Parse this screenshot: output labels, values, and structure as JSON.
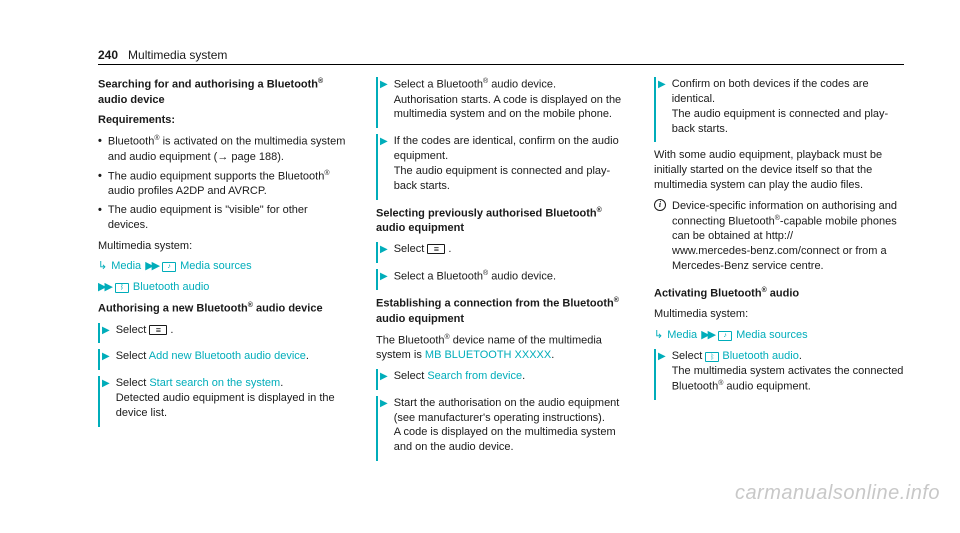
{
  "header": {
    "page": "240",
    "section": "Multimedia system"
  },
  "colors": {
    "teal": "#00adba",
    "text": "#1a1a1a",
    "watermark": "#c8c8c8"
  },
  "col1": {
    "h1a": "Searching for and authorising a Bluetooth",
    "h1b": "audio device",
    "reqLabel": "Requirements:",
    "req1a": "Bluetooth",
    "req1b": " is activated on the multimedia system and audio equipment (",
    "req1c": " page 188).",
    "req2a": "The audio equipment supports the Blue­tooth",
    "req2b": " audio profiles A2DP and AVRCP.",
    "req3": "The audio equipment is \"visible\" for other devices.",
    "multiLabel": "Multimedia system:",
    "navMedia": "Media",
    "navSources": "Media sources",
    "navBT": "Bluetooth audio",
    "h2a": "Authorising a new Bluetooth",
    "h2b": " audio device",
    "s1": "Select ",
    "s2a": "Select ",
    "s2link": "Add new Bluetooth audio device",
    "s3a": "Select ",
    "s3link": "Start search on the system",
    "s3b": "Detected audio equipment is displayed in the device list."
  },
  "col2": {
    "s1a": "Select a Bluetooth",
    "s1b": " audio device.",
    "s1c": "Authorisation starts. A code is displayed on the multimedia system and on the mobile phone.",
    "s2a": "If the codes are identical, confirm on the audio equipment.",
    "s2b": "The audio equipment is connected and play­back starts.",
    "h1a": "Selecting previously authorised Bluetooth",
    "h1b": "audio equipment",
    "s3": "Select ",
    "s4a": "Select a Bluetooth",
    "s4b": " audio device.",
    "h2a": "Establishing a connection from the Blue­tooth",
    "h2b": " audio equipment",
    "p1a": "The Bluetooth",
    "p1b": " device name of the multimedia system is ",
    "p1link": "MB BLUETOOTH XXXXX",
    "s5a": "Select ",
    "s5link": "Search from device",
    "s6a": "Start the authorisation on the audio equip­ment (see manufacturer's operating instruc­tions).",
    "s6b": "A code is displayed on the multimedia sys­tem and on the audio device."
  },
  "col3": {
    "s1a": "Confirm on both devices if the codes are identical.",
    "s1b": "The audio equipment is connected and play­back starts.",
    "p1": "With some audio equipment, playback must be initially started on the device itself so that the multimedia system can play the audio files.",
    "info": "Device-specific information on authorising and connecting Bluetooth",
    "infoB": "-capable mobile phones can be obtained at http://\nwww.mercedes-benz.com/connect or from a Mercedes-Benz service centre.",
    "h1a": "Activating Bluetooth",
    "h1b": " audio",
    "multiLabel": "Multimedia system:",
    "navMedia": "Media",
    "navSources": "Media sources",
    "s2a": "Select ",
    "s2link": "Bluetooth audio",
    "s2b": "The multimedia system activates the connec­ted Bluetooth",
    "s2c": " audio equipment."
  },
  "watermark": "carmanualsonline.info"
}
